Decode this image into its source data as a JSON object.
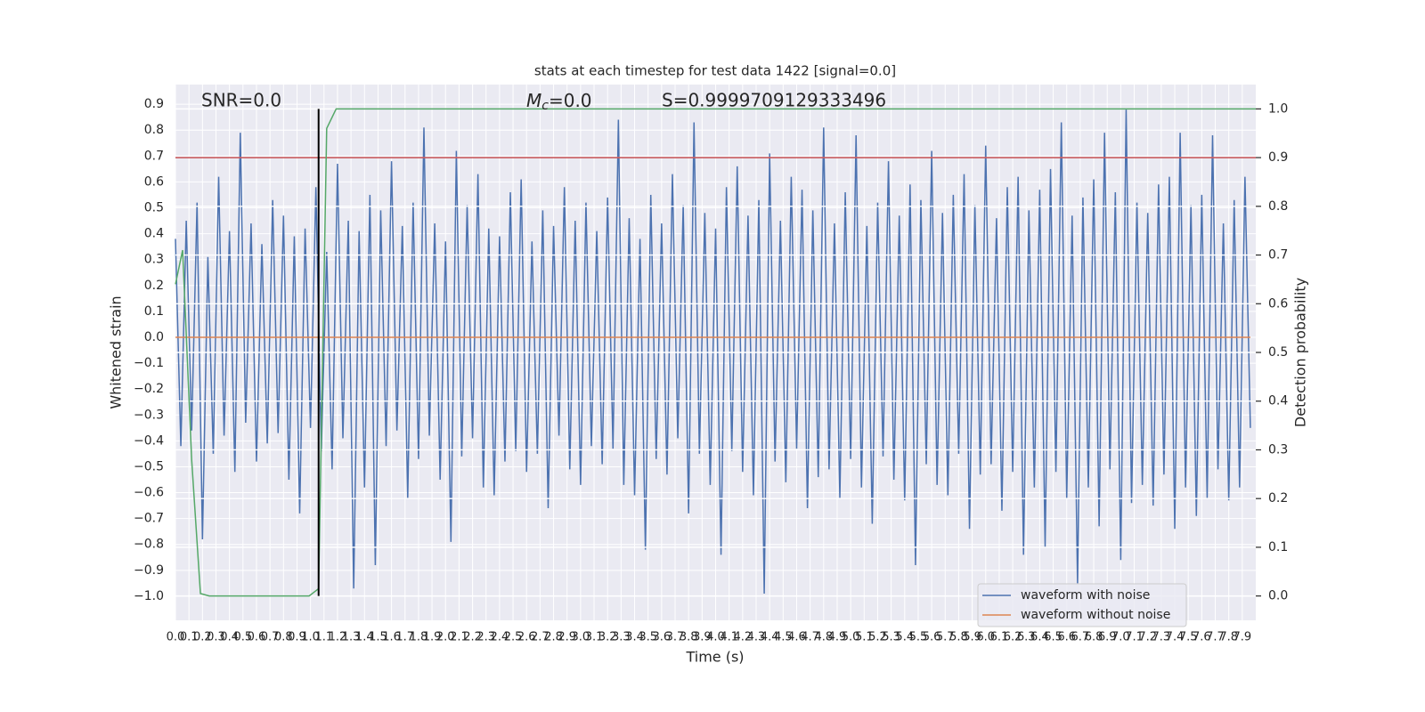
{
  "chart_data": {
    "type": "line",
    "title": "stats at each timestep for test data 1422 [signal=0.0]",
    "xlabel": "Time (s)",
    "ylabel": "Whitened strain",
    "y2label": "Detection probability",
    "annotations": {
      "snr": "SNR=0.0",
      "mc_symbol": "M",
      "mc_subscript": "c",
      "mc_text": "=0.0",
      "s": "S=0.9999709129333496"
    },
    "xlim": [
      0,
      8
    ],
    "ylim": [
      -1.093,
      0.976
    ],
    "y2lim": [
      -0.05,
      1.05
    ],
    "grid": true,
    "legend_position": "lower right",
    "xticks": [
      {
        "value": 0,
        "label": "0.0"
      },
      0.1,
      0.2,
      0.3,
      0.4,
      0.5,
      0.6,
      0.7,
      0.8,
      0.9,
      {
        "value": 1,
        "label": "1.0"
      },
      1.1,
      1.2,
      1.3,
      1.4,
      1.5,
      1.6,
      1.7,
      1.8,
      1.9,
      {
        "value": 2,
        "label": "2.0"
      },
      2.1,
      2.2,
      2.3,
      2.4,
      2.5,
      2.6,
      2.7,
      2.8,
      2.9,
      {
        "value": 3,
        "label": "3.0"
      },
      3.1,
      3.2,
      3.3,
      3.4,
      3.5,
      3.6,
      3.7,
      3.8,
      3.9,
      {
        "value": 4,
        "label": "4.0"
      },
      4.1,
      4.2,
      4.3,
      4.4,
      4.5,
      4.6,
      4.7,
      4.8,
      4.9,
      {
        "value": 5,
        "label": "5.0"
      },
      5.1,
      5.2,
      5.3,
      5.4,
      5.5,
      5.6,
      5.7,
      5.8,
      5.9,
      {
        "value": 6,
        "label": "6.0"
      },
      6.1,
      6.2,
      6.3,
      6.4,
      6.5,
      6.6,
      6.7,
      6.8,
      6.9,
      {
        "value": 7,
        "label": "7.0"
      },
      7.1,
      7.2,
      7.3,
      7.4,
      7.5,
      7.6,
      7.7,
      7.8,
      7.9
    ],
    "yticks": [
      {
        "value": -1.0,
        "label": "−1.0"
      },
      {
        "value": -0.9,
        "label": "−0.9"
      },
      {
        "value": -0.8,
        "label": "−0.8"
      },
      {
        "value": -0.7,
        "label": "−0.7"
      },
      {
        "value": -0.6,
        "label": "−0.6"
      },
      {
        "value": -0.5,
        "label": "−0.5"
      },
      {
        "value": -0.4,
        "label": "−0.4"
      },
      {
        "value": -0.3,
        "label": "−0.3"
      },
      {
        "value": -0.2,
        "label": "−0.2"
      },
      {
        "value": -0.1,
        "label": "−0.1"
      },
      {
        "value": 0,
        "label": "0.0"
      },
      0.1,
      0.2,
      0.3,
      0.4,
      0.5,
      0.6,
      0.7,
      0.8,
      0.9
    ],
    "y2ticks": [
      {
        "value": 0,
        "label": "0.0"
      },
      0.1,
      0.2,
      0.3,
      0.4,
      0.5,
      0.6,
      0.7,
      0.8,
      0.9,
      {
        "value": 1,
        "label": "1.0"
      }
    ],
    "threshold": {
      "value": 0.9,
      "axis": "y2",
      "color": "#c44e52"
    },
    "marker": {
      "x": 1.06,
      "y2range": [
        0,
        1
      ],
      "color": "#000000"
    },
    "series": [
      {
        "name": "waveform with noise",
        "color": "#4c72b0",
        "legend": true,
        "x": [
          0,
          0.04,
          0.08,
          0.12,
          0.16,
          0.2,
          0.24,
          0.28,
          0.32,
          0.36,
          0.4,
          0.44,
          0.48,
          0.52,
          0.56,
          0.6,
          0.64,
          0.68,
          0.72,
          0.76,
          0.8,
          0.84,
          0.88,
          0.92,
          0.96,
          1,
          1.04,
          1.08,
          1.12,
          1.16,
          1.2,
          1.24,
          1.28,
          1.32,
          1.36,
          1.4,
          1.44,
          1.48,
          1.52,
          1.56,
          1.6,
          1.64,
          1.68,
          1.72,
          1.76,
          1.8,
          1.84,
          1.88,
          1.92,
          1.96,
          2,
          2.04,
          2.08,
          2.12,
          2.16,
          2.2,
          2.24,
          2.28,
          2.32,
          2.36,
          2.4,
          2.44,
          2.48,
          2.52,
          2.56,
          2.6,
          2.64,
          2.68,
          2.72,
          2.76,
          2.8,
          2.84,
          2.88,
          2.92,
          2.96,
          3,
          3.04,
          3.08,
          3.12,
          3.16,
          3.2,
          3.24,
          3.28,
          3.32,
          3.36,
          3.4,
          3.44,
          3.48,
          3.52,
          3.56,
          3.6,
          3.64,
          3.68,
          3.72,
          3.76,
          3.8,
          3.84,
          3.88,
          3.92,
          3.96,
          4,
          4.04,
          4.08,
          4.12,
          4.16,
          4.2,
          4.24,
          4.28,
          4.32,
          4.36,
          4.4,
          4.44,
          4.48,
          4.52,
          4.56,
          4.6,
          4.64,
          4.68,
          4.72,
          4.76,
          4.8,
          4.84,
          4.88,
          4.92,
          4.96,
          5,
          5.04,
          5.08,
          5.12,
          5.16,
          5.2,
          5.24,
          5.28,
          5.32,
          5.36,
          5.4,
          5.44,
          5.48,
          5.52,
          5.56,
          5.6,
          5.64,
          5.68,
          5.72,
          5.76,
          5.8,
          5.84,
          5.88,
          5.92,
          5.96,
          6,
          6.04,
          6.08,
          6.12,
          6.16,
          6.2,
          6.24,
          6.28,
          6.32,
          6.36,
          6.4,
          6.44,
          6.48,
          6.52,
          6.56,
          6.6,
          6.64,
          6.68,
          6.72,
          6.76,
          6.8,
          6.84,
          6.88,
          6.92,
          6.96,
          7,
          7.04,
          7.08,
          7.12,
          7.16,
          7.2,
          7.24,
          7.28,
          7.32,
          7.36,
          7.4,
          7.44,
          7.48,
          7.52,
          7.56,
          7.6,
          7.64,
          7.68,
          7.72,
          7.76,
          7.8,
          7.84,
          7.88,
          7.92,
          7.96
        ],
        "values": [
          0.38,
          -0.42,
          0.45,
          -0.36,
          0.52,
          -0.78,
          0.31,
          -0.45,
          0.62,
          -0.38,
          0.41,
          -0.52,
          0.79,
          -0.33,
          0.44,
          -0.48,
          0.36,
          -0.41,
          0.53,
          -0.37,
          0.47,
          -0.55,
          0.39,
          -0.68,
          0.42,
          -0.35,
          0.58,
          -0.44,
          0.33,
          -0.51,
          0.67,
          -0.39,
          0.45,
          -0.97,
          0.41,
          -0.58,
          0.55,
          -0.88,
          0.49,
          -0.42,
          0.68,
          -0.36,
          0.43,
          -0.62,
          0.52,
          -0.47,
          0.81,
          -0.38,
          0.44,
          -0.55,
          0.37,
          -0.79,
          0.72,
          -0.46,
          0.51,
          -0.39,
          0.63,
          -0.58,
          0.42,
          -0.61,
          0.39,
          -0.48,
          0.56,
          -0.44,
          0.61,
          -0.52,
          0.37,
          -0.45,
          0.49,
          -0.66,
          0.43,
          -0.38,
          0.58,
          -0.51,
          0.45,
          -0.57,
          0.52,
          -0.42,
          0.41,
          -0.49,
          0.54,
          -0.43,
          0.84,
          -0.57,
          0.46,
          -0.61,
          0.38,
          -0.82,
          0.55,
          -0.47,
          0.44,
          -0.53,
          0.63,
          -0.39,
          0.51,
          -0.68,
          0.83,
          -0.45,
          0.48,
          -0.57,
          0.42,
          -0.84,
          0.58,
          -0.44,
          0.66,
          -0.52,
          0.47,
          -0.61,
          0.53,
          -0.99,
          0.71,
          -0.48,
          0.45,
          -0.56,
          0.62,
          -0.43,
          0.57,
          -0.66,
          0.49,
          -0.54,
          0.81,
          -0.51,
          0.44,
          -0.62,
          0.56,
          -0.47,
          0.78,
          -0.58,
          0.43,
          -0.72,
          0.52,
          -0.46,
          0.68,
          -0.55,
          0.47,
          -0.63,
          0.59,
          -0.88,
          0.53,
          -0.49,
          0.72,
          -0.57,
          0.48,
          -0.61,
          0.55,
          -0.45,
          0.63,
          -0.74,
          0.51,
          -0.53,
          0.74,
          -0.49,
          0.46,
          -0.67,
          0.58,
          -0.52,
          0.62,
          -0.84,
          0.49,
          -0.58,
          0.57,
          -0.81,
          0.65,
          -0.52,
          0.83,
          -0.62,
          0.47,
          -0.95,
          0.54,
          -0.58,
          0.61,
          -0.73,
          0.79,
          -0.51,
          0.56,
          -0.86,
          0.88,
          -0.64,
          0.52,
          -0.57,
          0.48,
          -0.65,
          0.59,
          -0.53,
          0.62,
          -0.74,
          0.79,
          -0.58,
          0.51,
          -0.69,
          0.55,
          -0.62,
          0.78,
          -0.51,
          0.44,
          -0.63,
          0.53,
          -0.58,
          0.62,
          -0.35
        ]
      },
      {
        "name": "waveform without noise",
        "color": "#dd8452",
        "legend": true,
        "x": [
          0,
          7.96
        ],
        "values": [
          0,
          0
        ]
      },
      {
        "color": "#55a868",
        "axis": "y2",
        "x": [
          0,
          0.053,
          0.12,
          0.185,
          0.25,
          0.99,
          1.06,
          1.12,
          1.19,
          8
        ],
        "values": [
          0.64,
          0.71,
          0.28,
          0.005,
          0,
          0,
          0.015,
          0.96,
          1.0,
          1.0
        ]
      }
    ]
  }
}
